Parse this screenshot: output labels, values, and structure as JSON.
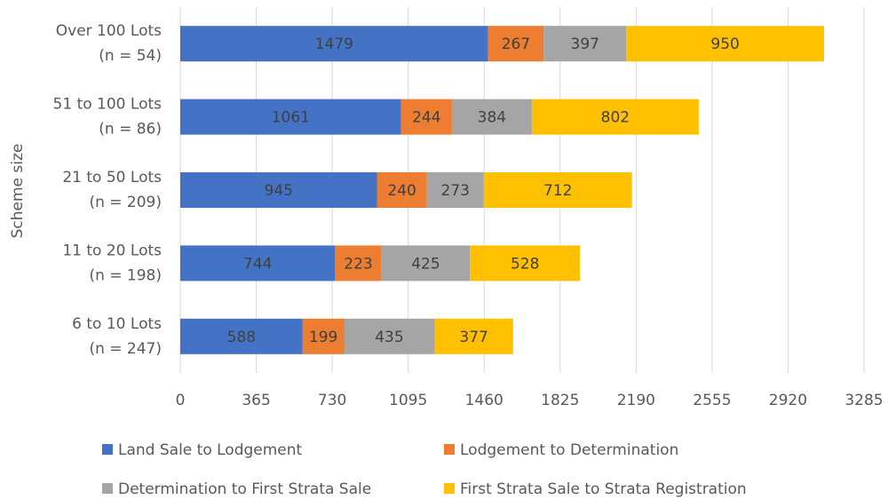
{
  "chart_data": {
    "type": "stacked-barh",
    "y_label": "Scheme size",
    "categories": [
      [
        "Over 100 Lots",
        "(n = 54)"
      ],
      [
        "51 to 100 Lots",
        "(n = 86)"
      ],
      [
        "21 to 50 Lots",
        "(n = 209)"
      ],
      [
        "11 to 20 Lots",
        "(n = 198)"
      ],
      [
        "6 to 10 Lots",
        "(n = 247)"
      ]
    ],
    "series": [
      {
        "name": "Land Sale to Lodgement",
        "color": "#4472c4",
        "values": [
          1479,
          1061,
          945,
          744,
          588
        ]
      },
      {
        "name": "Lodgement to Determination",
        "color": "#ed7d31",
        "values": [
          267,
          244,
          240,
          223,
          199
        ]
      },
      {
        "name": "Determination to First Strata Sale",
        "color": "#a5a5a5",
        "values": [
          397,
          384,
          273,
          425,
          435
        ]
      },
      {
        "name": "First Strata Sale to Strata Registration",
        "color": "#ffc000",
        "values": [
          950,
          802,
          712,
          528,
          377
        ]
      }
    ],
    "xlim": [
      0,
      3285
    ],
    "xticks": [
      0,
      365,
      730,
      1095,
      1460,
      1825,
      2190,
      2555,
      2920,
      3285
    ],
    "grid": true,
    "legend": "bottom"
  }
}
